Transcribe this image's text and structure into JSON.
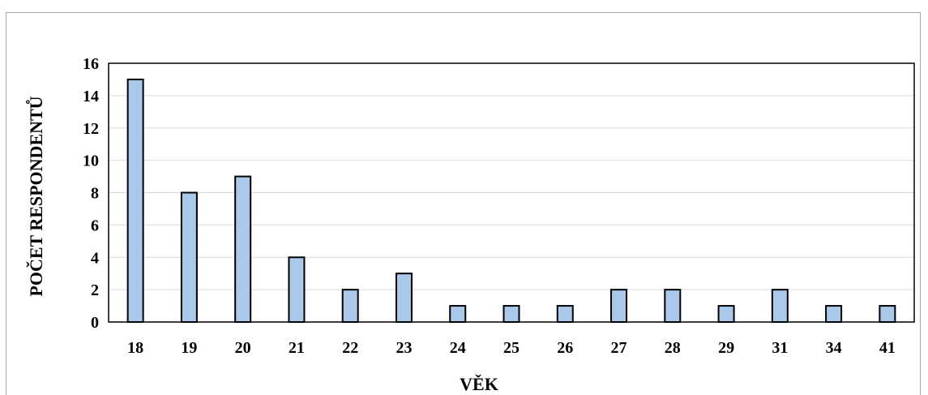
{
  "chart_data": {
    "type": "bar",
    "title": "",
    "xlabel": "VĚK",
    "ylabel": "POČET RESPONDENTŮ",
    "categories": [
      "18",
      "19",
      "20",
      "21",
      "22",
      "23",
      "24",
      "25",
      "26",
      "27",
      "28",
      "29",
      "31",
      "34",
      "41"
    ],
    "values": [
      15,
      8,
      9,
      4,
      2,
      3,
      1,
      1,
      1,
      2,
      2,
      1,
      2,
      1,
      1
    ],
    "ylim": [
      0,
      16
    ],
    "yticks": [
      "0",
      "2",
      "4",
      "6",
      "8",
      "10",
      "12",
      "14",
      "16"
    ],
    "grid": true,
    "legend": "none",
    "colors": {
      "bar_fill": "#a9c8ea",
      "bar_stroke": "#000000",
      "grid": "#d9d9d9",
      "frame": "#a6a6a6"
    }
  }
}
